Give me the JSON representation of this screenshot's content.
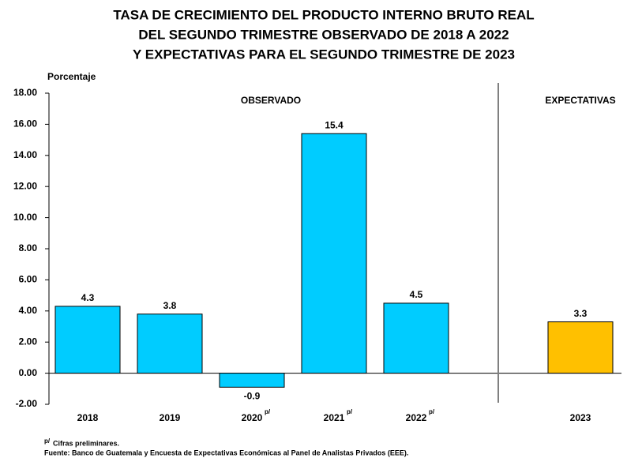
{
  "chart_data": {
    "type": "bar",
    "title": [
      "TASA DE CRECIMIENTO DEL PRODUCTO INTERNO BRUTO REAL",
      "DEL SEGUNDO TRIMESTRE OBSERVADO DE 2018 A 2022",
      "Y EXPECTATIVAS PARA EL SEGUNDO TRIMESTRE DE 2023"
    ],
    "y_label": "Porcentaje",
    "preliminary_mark": "p/",
    "groups": [
      {
        "name": "OBSERVADO",
        "color": "#00ccff",
        "categories": [
          "2018",
          "2019",
          "2020",
          "2021",
          "2022"
        ],
        "values": [
          4.3,
          3.8,
          -0.9,
          15.4,
          4.5
        ],
        "preliminary": [
          false,
          false,
          true,
          true,
          true
        ]
      },
      {
        "name": "EXPECTATIVAS",
        "color": "#ffc000",
        "categories": [
          "2023"
        ],
        "values": [
          3.3
        ],
        "preliminary": [
          false
        ]
      }
    ],
    "ylim": [
      -2,
      18
    ],
    "yticks": [
      {
        "value": -2,
        "label": "-2.00"
      },
      {
        "value": 0,
        "label": "0.00"
      },
      {
        "value": 2,
        "label": "2.00"
      },
      {
        "value": 4,
        "label": "4.00"
      },
      {
        "value": 6,
        "label": "6.00"
      },
      {
        "value": 8,
        "label": "8.00"
      },
      {
        "value": 10,
        "label": "10.00"
      },
      {
        "value": 12,
        "label": "12.00"
      },
      {
        "value": 14,
        "label": "14.00"
      },
      {
        "value": 16,
        "label": "16.00"
      },
      {
        "value": 18,
        "label": "18.00"
      }
    ],
    "notes": {
      "preliminary": "Cifras preliminares.",
      "source": "Fuente:  Banco de Guatemala y Encuesta de Expectativas Económicas al Panel de Analistas Privados (EEE)."
    }
  }
}
